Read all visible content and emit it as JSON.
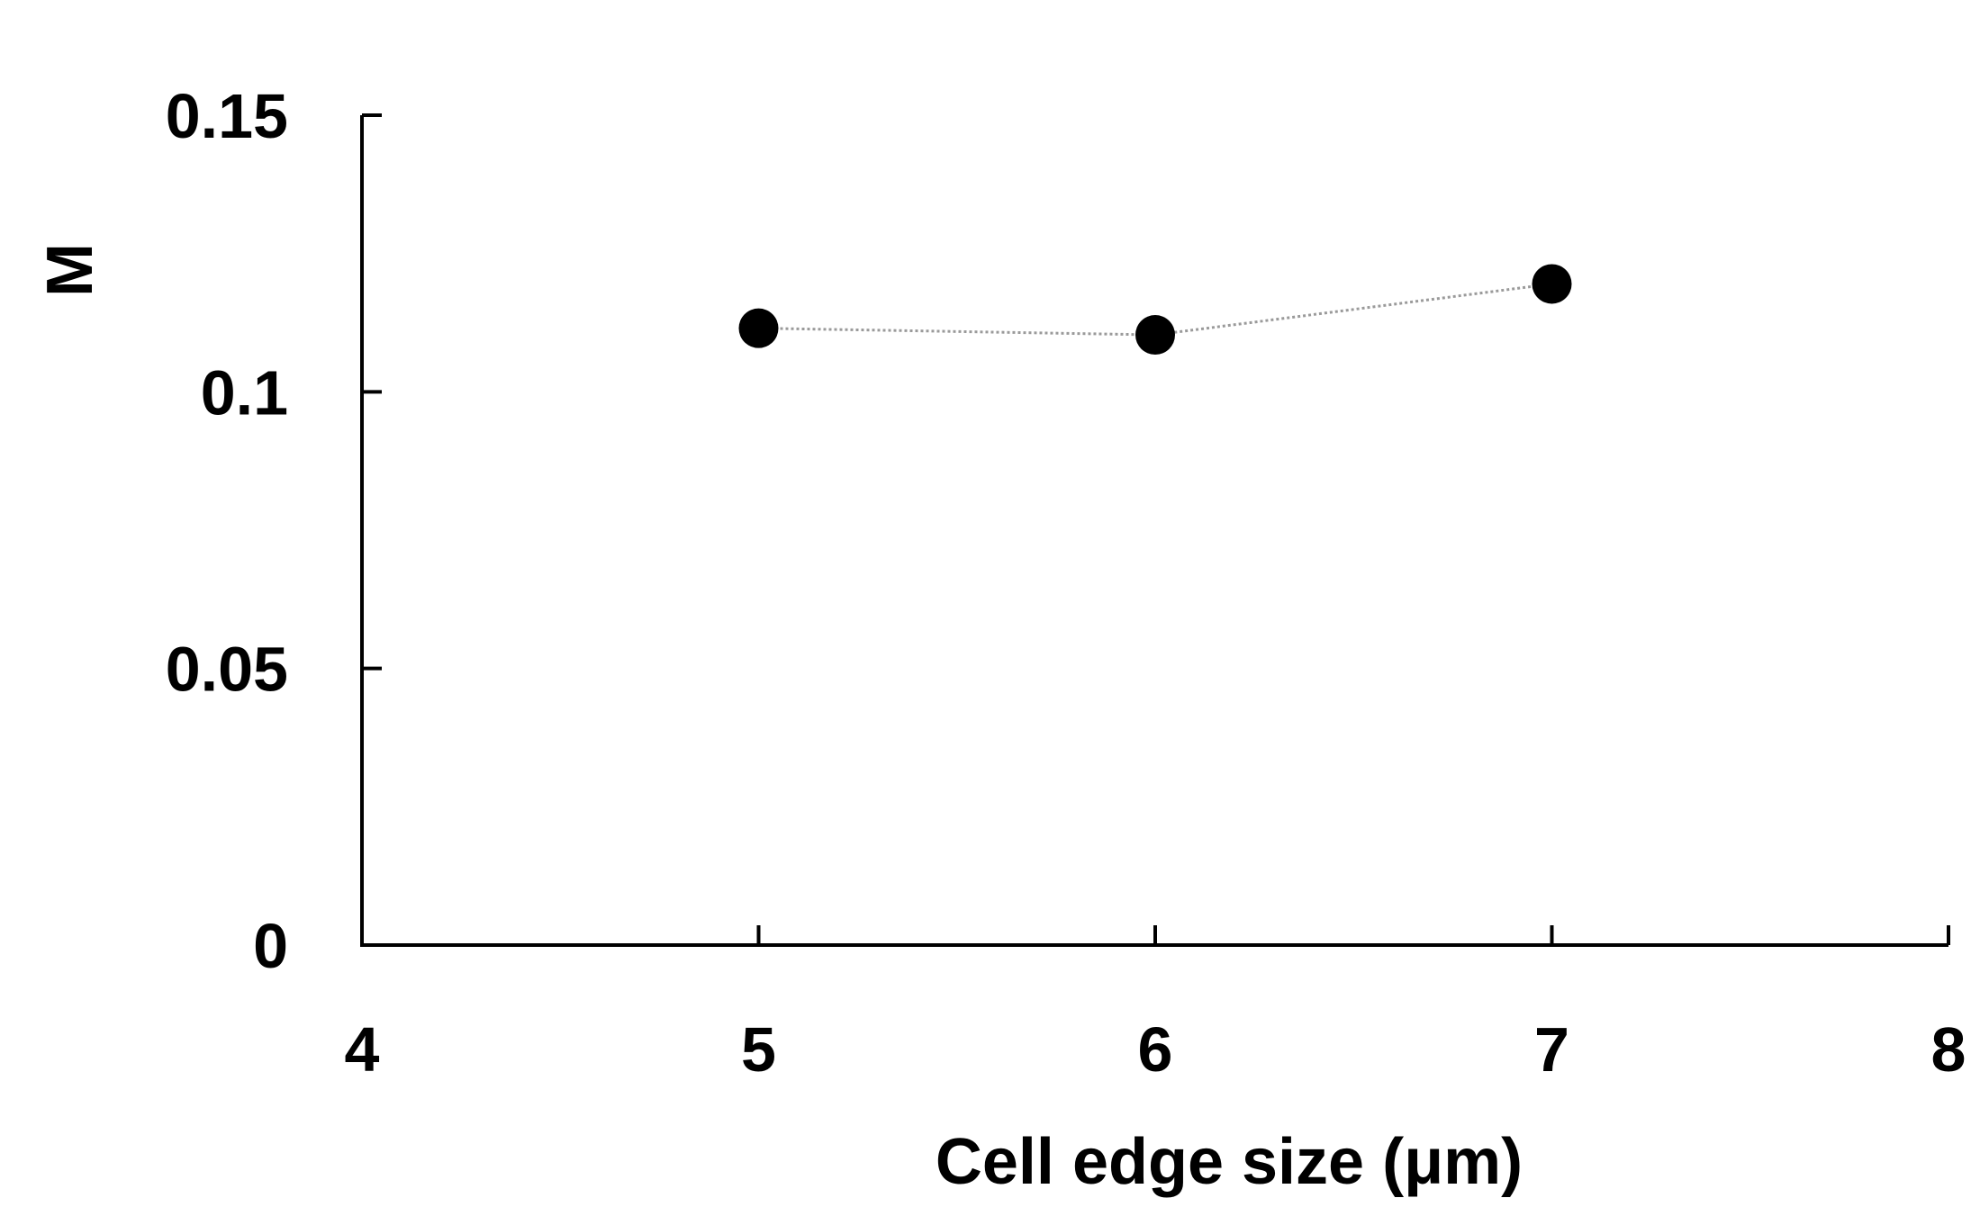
{
  "chart_data": {
    "type": "line",
    "title": "",
    "xlabel": "Cell edge size (μm)",
    "ylabel": "M",
    "xlim": [
      4,
      8
    ],
    "ylim": [
      0,
      0.15
    ],
    "x_ticks": [
      4,
      5,
      6,
      7,
      8
    ],
    "y_ticks": [
      0,
      0.05,
      0.1,
      0.15
    ],
    "x_tick_labels": [
      "4",
      "5",
      "6",
      "7",
      "8"
    ],
    "y_tick_labels": [
      "0",
      "0.05",
      "0.1",
      "0.15"
    ],
    "grid": false,
    "legend": "none",
    "series": [
      {
        "x": [
          5,
          6,
          7
        ],
        "values": [
          0.1115,
          0.1103,
          0.1195
        ],
        "marker": "circle",
        "marker_color": "#000000",
        "line_color": "#9a9a9a",
        "line_style": "dotted"
      }
    ]
  }
}
